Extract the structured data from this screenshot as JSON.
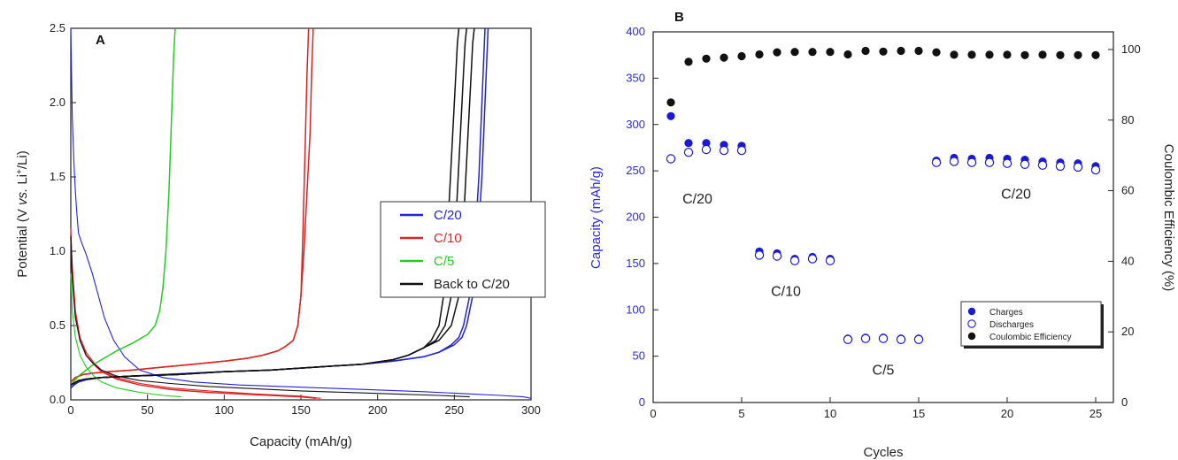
{
  "chart_data": [
    {
      "type": "line",
      "panel_label": "A",
      "xlabel": "Capacity (mAh/g)",
      "ylabel": "Potential (V vs. Li+/Li)",
      "xlim": [
        0,
        300
      ],
      "ylim": [
        0,
        2.5
      ],
      "xticks": [
        0,
        50,
        100,
        150,
        200,
        250,
        300
      ],
      "yticks": [
        0.0,
        0.5,
        1.0,
        1.5,
        2.0,
        2.5
      ],
      "legend_position": "center-right",
      "series": [
        {
          "name": "C/20",
          "color": "#2222dd",
          "curves": [
            {
              "x": [
                0,
                1,
                2,
                3,
                4,
                5,
                7,
                10,
                14,
                18,
                22,
                28,
                35,
                45,
                60,
                80,
                110,
                150,
                190,
                230,
                260,
                280,
                295,
                300
              ],
              "y": [
                2.5,
                1.9,
                1.6,
                1.4,
                1.25,
                1.12,
                1.06,
                0.98,
                0.85,
                0.7,
                0.55,
                0.4,
                0.29,
                0.2,
                0.15,
                0.12,
                0.1,
                0.085,
                0.07,
                0.055,
                0.04,
                0.03,
                0.02,
                0.01
              ]
            },
            {
              "x": [
                0,
                2,
                5,
                10,
                20,
                40,
                70,
                100,
                130,
                160,
                190,
                210,
                230,
                240,
                250,
                255,
                258,
                262,
                265,
                268,
                270,
                272
              ],
              "y": [
                0.08,
                0.1,
                0.12,
                0.135,
                0.15,
                0.16,
                0.175,
                0.19,
                0.2,
                0.22,
                0.24,
                0.26,
                0.29,
                0.32,
                0.37,
                0.42,
                0.5,
                0.7,
                1.0,
                1.5,
                2.0,
                2.5
              ]
            },
            {
              "x": [
                0,
                2,
                5,
                10,
                20,
                40,
                70,
                100,
                130,
                160,
                190,
                210,
                230,
                240,
                248,
                253,
                256,
                260,
                263,
                266,
                268,
                270
              ],
              "y": [
                0.08,
                0.1,
                0.12,
                0.135,
                0.15,
                0.16,
                0.175,
                0.19,
                0.2,
                0.22,
                0.24,
                0.26,
                0.29,
                0.32,
                0.37,
                0.42,
                0.5,
                0.7,
                1.0,
                1.5,
                2.0,
                2.5
              ]
            }
          ]
        },
        {
          "name": "C/10",
          "color": "#dd2222",
          "curves": [
            {
              "x": [
                0,
                1,
                3,
                6,
                10,
                15,
                20,
                30,
                45,
                65,
                90,
                120,
                150,
                163
              ],
              "y": [
                1.15,
                0.9,
                0.6,
                0.42,
                0.32,
                0.25,
                0.2,
                0.15,
                0.11,
                0.08,
                0.06,
                0.04,
                0.025,
                0.01
              ]
            },
            {
              "x": [
                0,
                1,
                3,
                6,
                10,
                15,
                20,
                30,
                45,
                65,
                90,
                120,
                150,
                160
              ],
              "y": [
                1.1,
                0.85,
                0.58,
                0.4,
                0.3,
                0.24,
                0.19,
                0.14,
                0.1,
                0.07,
                0.05,
                0.035,
                0.02,
                0.01
              ]
            },
            {
              "x": [
                0,
                3,
                8,
                15,
                25,
                40,
                60,
                80,
                100,
                115,
                125,
                135,
                140,
                145,
                148,
                150,
                151,
                152,
                153,
                154,
                155
              ],
              "y": [
                0.12,
                0.15,
                0.17,
                0.18,
                0.19,
                0.2,
                0.22,
                0.24,
                0.26,
                0.28,
                0.3,
                0.33,
                0.36,
                0.4,
                0.5,
                0.7,
                1.0,
                1.4,
                1.8,
                2.2,
                2.5
              ]
            },
            {
              "x": [
                0,
                3,
                8,
                15,
                25,
                40,
                60,
                80,
                100,
                115,
                125,
                135,
                140,
                145,
                148,
                150,
                152,
                154,
                156,
                157,
                158
              ],
              "y": [
                0.12,
                0.15,
                0.17,
                0.18,
                0.19,
                0.2,
                0.22,
                0.24,
                0.26,
                0.28,
                0.3,
                0.33,
                0.36,
                0.4,
                0.5,
                0.7,
                1.0,
                1.4,
                1.8,
                2.2,
                2.5
              ]
            }
          ]
        },
        {
          "name": "C/5",
          "color": "#22cc22",
          "curves": [
            {
              "x": [
                0,
                1,
                3,
                6,
                10,
                15,
                20,
                30,
                45,
                60,
                72
              ],
              "y": [
                0.85,
                0.6,
                0.42,
                0.3,
                0.22,
                0.16,
                0.12,
                0.08,
                0.05,
                0.03,
                0.02
              ]
            },
            {
              "x": [
                0,
                5,
                10,
                15,
                20,
                30,
                40,
                50,
                55,
                58,
                60,
                62,
                64,
                65,
                66,
                67,
                68
              ],
              "y": [
                0.1,
                0.16,
                0.2,
                0.24,
                0.27,
                0.33,
                0.38,
                0.44,
                0.5,
                0.6,
                0.75,
                1.0,
                1.4,
                1.7,
                2.0,
                2.3,
                2.5
              ]
            }
          ]
        },
        {
          "name": "Back to C/20",
          "color": "#111111",
          "curves": [
            {
              "x": [
                0,
                1,
                3,
                6,
                10,
                15,
                20,
                30,
                45,
                65,
                90,
                120,
                150,
                180,
                210,
                240,
                260
              ],
              "y": [
                1.1,
                0.8,
                0.55,
                0.4,
                0.3,
                0.24,
                0.2,
                0.16,
                0.13,
                0.11,
                0.09,
                0.075,
                0.06,
                0.05,
                0.04,
                0.03,
                0.02
              ]
            },
            {
              "x": [
                0,
                5,
                10,
                20,
                40,
                70,
                100,
                130,
                160,
                190,
                210,
                220,
                230,
                235,
                240,
                243,
                245,
                247,
                249,
                251,
                252,
                253
              ],
              "y": [
                0.1,
                0.13,
                0.14,
                0.15,
                0.16,
                0.17,
                0.19,
                0.2,
                0.22,
                0.24,
                0.27,
                0.3,
                0.35,
                0.4,
                0.5,
                0.7,
                1.0,
                1.4,
                1.8,
                2.2,
                2.4,
                2.5
              ]
            },
            {
              "x": [
                0,
                5,
                10,
                20,
                40,
                70,
                100,
                130,
                160,
                190,
                210,
                220,
                230,
                238,
                244,
                248,
                250,
                252,
                254,
                256,
                257,
                258
              ],
              "y": [
                0.1,
                0.13,
                0.14,
                0.15,
                0.16,
                0.17,
                0.19,
                0.2,
                0.22,
                0.24,
                0.27,
                0.3,
                0.35,
                0.4,
                0.5,
                0.7,
                1.0,
                1.4,
                1.8,
                2.2,
                2.4,
                2.5
              ]
            },
            {
              "x": [
                0,
                5,
                10,
                20,
                40,
                70,
                100,
                130,
                160,
                190,
                210,
                220,
                230,
                240,
                248,
                253,
                255,
                257,
                259,
                261,
                262,
                263
              ],
              "y": [
                0.1,
                0.13,
                0.14,
                0.15,
                0.16,
                0.17,
                0.19,
                0.2,
                0.22,
                0.24,
                0.27,
                0.3,
                0.35,
                0.4,
                0.5,
                0.7,
                1.0,
                1.4,
                1.8,
                2.2,
                2.4,
                2.5
              ]
            }
          ]
        }
      ]
    },
    {
      "type": "scatter",
      "panel_label": "B",
      "xlabel": "Cycles",
      "ylabel": "Capacity (mAh/g)",
      "ylabel_right": "Coulombic Efficiency (%)",
      "xlim": [
        0,
        26
      ],
      "ylim": [
        0,
        400
      ],
      "ylim_right": [
        0,
        105
      ],
      "xticks": [
        0,
        5,
        10,
        15,
        20,
        25
      ],
      "yticks": [
        0,
        50,
        100,
        150,
        200,
        250,
        300,
        350,
        400
      ],
      "yticks_right": [
        0,
        20,
        40,
        60,
        80,
        100
      ],
      "legend_position": "bottom-right",
      "annotations": [
        {
          "text": "C/20",
          "x": 2.5,
          "y": 215
        },
        {
          "text": "C/10",
          "x": 7.5,
          "y": 115
        },
        {
          "text": "C/5",
          "x": 13.0,
          "y": 30
        },
        {
          "text": "C/20",
          "x": 20.5,
          "y": 220
        }
      ],
      "series": [
        {
          "name": "Charges",
          "axis": "left",
          "marker": "filled",
          "color": "#1a1ad6",
          "x": [
            1,
            2,
            3,
            4,
            5,
            6,
            7,
            8,
            9,
            10,
            11,
            12,
            13,
            14,
            15,
            16,
            17,
            18,
            19,
            20,
            21,
            22,
            23,
            24,
            25
          ],
          "y": [
            309,
            280,
            280,
            278,
            277,
            163,
            161,
            155,
            157,
            155,
            69,
            70,
            70,
            69,
            69,
            261,
            264,
            263,
            264,
            263,
            262,
            260,
            259,
            258,
            255
          ]
        },
        {
          "name": "Discharges",
          "axis": "left",
          "marker": "open",
          "color": "#1a1ad6",
          "x": [
            1,
            2,
            3,
            4,
            5,
            6,
            7,
            8,
            9,
            10,
            11,
            12,
            13,
            14,
            15,
            16,
            17,
            18,
            19,
            20,
            21,
            22,
            23,
            24,
            25
          ],
          "y": [
            263,
            270,
            273,
            272,
            272,
            159,
            158,
            153,
            155,
            153,
            68,
            69,
            69,
            68,
            68,
            259,
            260,
            259,
            259,
            258,
            257,
            256,
            255,
            254,
            251
          ]
        },
        {
          "name": "Coulombic Efficiency",
          "axis": "right",
          "marker": "filled",
          "color": "#111111",
          "x": [
            1,
            2,
            3,
            4,
            5,
            6,
            7,
            8,
            9,
            10,
            11,
            12,
            13,
            14,
            15,
            16,
            17,
            18,
            19,
            20,
            21,
            22,
            23,
            24,
            25
          ],
          "y": [
            85,
            96.5,
            97.4,
            97.7,
            98.1,
            98.6,
            99.2,
            99.3,
            99.3,
            99.3,
            98.6,
            99.6,
            99.4,
            99.6,
            99.6,
            99.2,
            98.5,
            98.5,
            98.5,
            98.5,
            98.4,
            98.5,
            98.4,
            98.4,
            98.4
          ]
        }
      ]
    }
  ]
}
